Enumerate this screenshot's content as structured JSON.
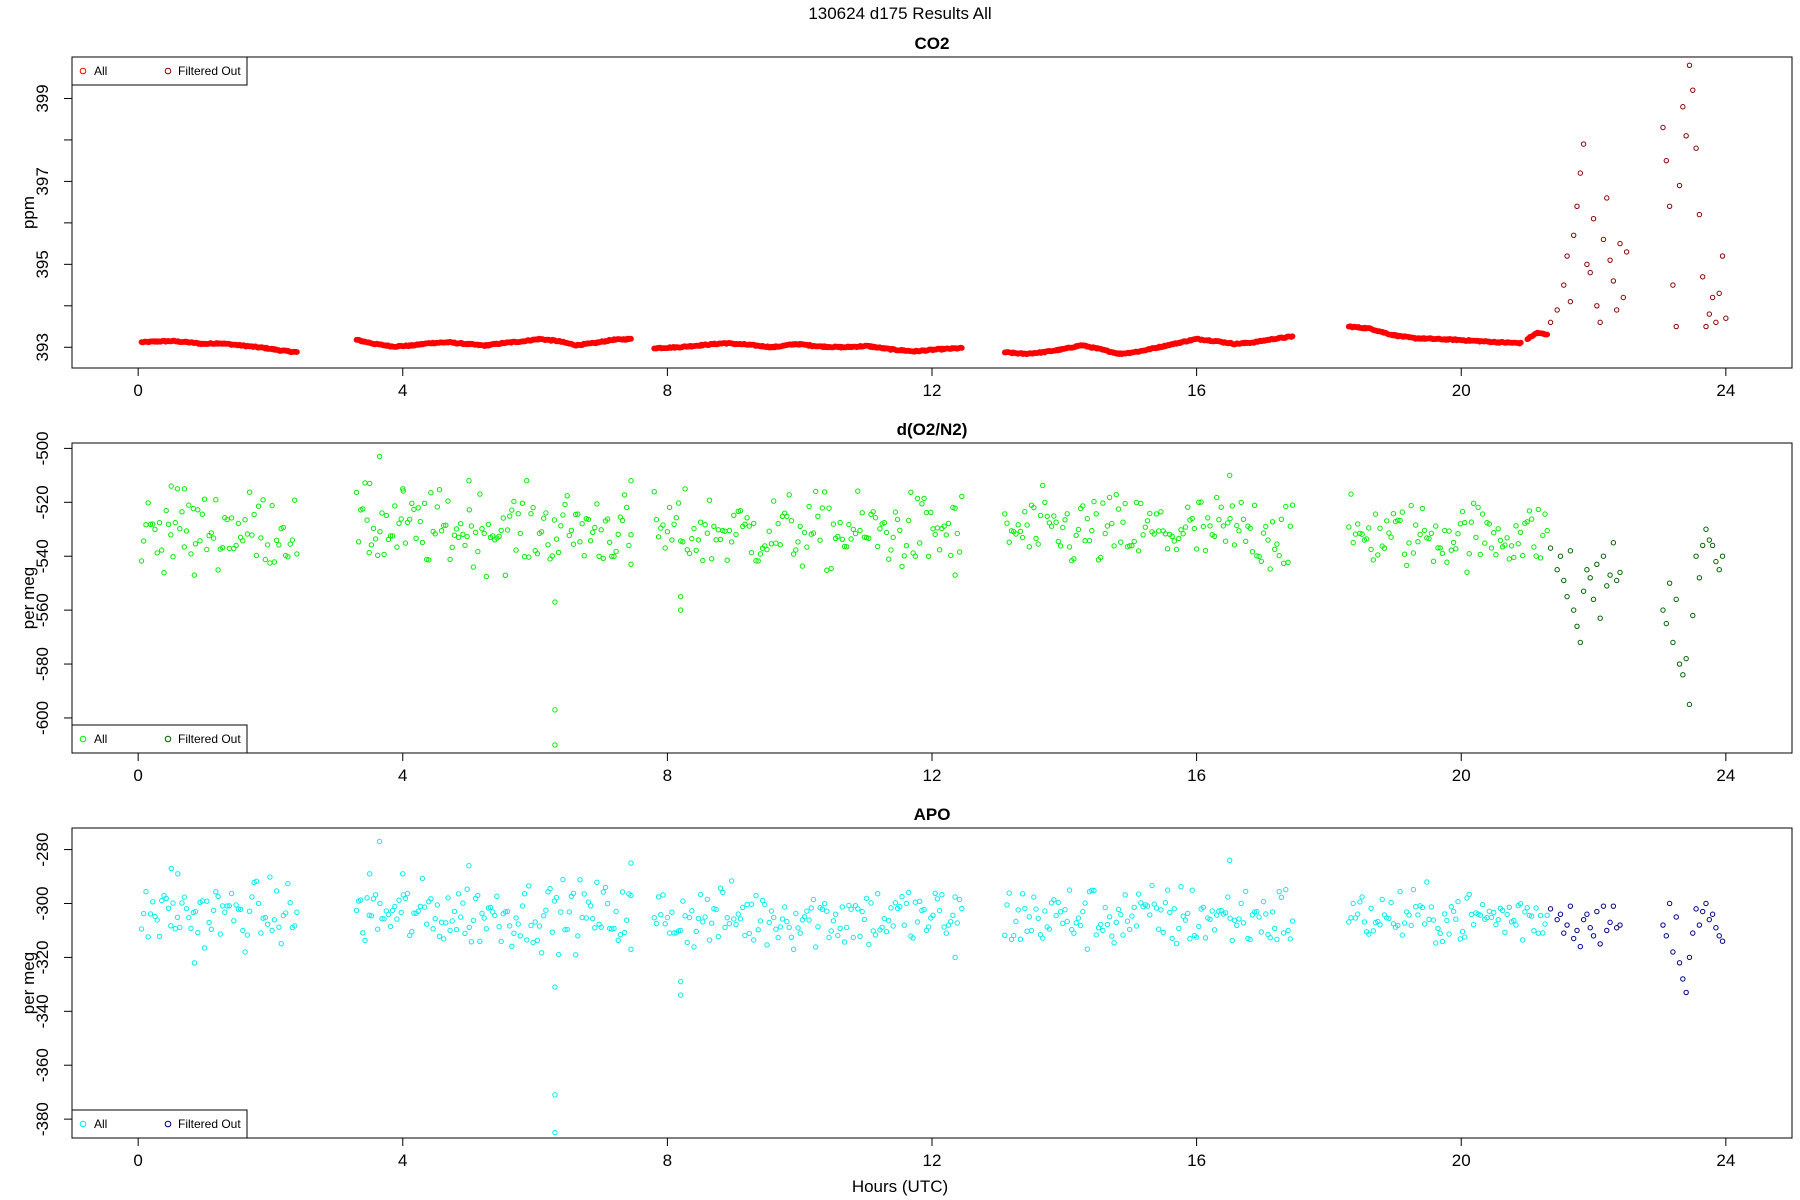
{
  "page": {
    "title": "130624   d175   Results All",
    "xlabel": "Hours (UTC)"
  },
  "chart_data": [
    {
      "type": "scatter",
      "title": "CO2",
      "ylabel": "ppm",
      "xlim": [
        -1.0,
        25.0
      ],
      "ylim": [
        392.5,
        400.0
      ],
      "xticks": [
        0,
        4,
        8,
        12,
        16,
        20,
        24
      ],
      "yticks": [
        393,
        395,
        397,
        399
      ],
      "minor_yticks": [
        394,
        396,
        398
      ],
      "legend": {
        "position": "top-left",
        "labels": [
          "All",
          "Filtered Out"
        ]
      },
      "series": [
        {
          "name": "All",
          "color": "#ff0000",
          "segments": [
            {
              "x_start": 0.05,
              "x_end": 2.4,
              "y_profile": [
                393.12,
                393.14,
                393.15,
                393.12,
                393.08,
                393.1,
                393.06,
                393.02,
                392.98,
                392.92,
                392.88
              ]
            },
            {
              "x_start": 3.3,
              "x_end": 7.45,
              "y_profile": [
                393.18,
                393.08,
                393.02,
                393.04,
                393.1,
                393.12,
                393.08,
                393.04,
                393.1,
                393.14,
                393.2,
                393.15,
                393.05,
                393.1,
                393.18,
                393.2
              ]
            },
            {
              "x_start": 7.8,
              "x_end": 12.45,
              "y_profile": [
                392.98,
                393.0,
                393.05,
                393.1,
                393.06,
                393.0,
                393.08,
                393.02,
                393.0,
                393.03,
                392.95,
                392.9,
                392.95,
                392.98
              ]
            },
            {
              "x_start": 13.1,
              "x_end": 17.45,
              "y_profile": [
                392.88,
                392.84,
                392.88,
                392.95,
                393.05,
                392.95,
                392.84,
                392.9,
                393.0,
                393.1,
                393.2,
                393.15,
                393.08,
                393.12,
                393.2,
                393.26
              ]
            },
            {
              "x_start": 18.3,
              "x_end": 20.9,
              "y_profile": [
                393.5,
                393.45,
                393.3,
                393.22,
                393.2,
                393.18,
                393.15,
                393.12,
                393.1
              ]
            },
            {
              "x_start": 21.0,
              "x_end": 21.3,
              "y_profile": [
                393.2,
                393.35,
                393.3
              ]
            }
          ]
        },
        {
          "name": "Filtered Out",
          "color": "#8b0000",
          "points": [
            [
              21.35,
              393.6
            ],
            [
              21.45,
              393.9
            ],
            [
              21.55,
              394.5
            ],
            [
              21.6,
              395.2
            ],
            [
              21.65,
              394.1
            ],
            [
              21.7,
              395.7
            ],
            [
              21.75,
              396.4
            ],
            [
              21.8,
              397.2
            ],
            [
              21.85,
              397.9
            ],
            [
              21.9,
              395.0
            ],
            [
              21.95,
              394.8
            ],
            [
              22.0,
              396.1
            ],
            [
              22.05,
              394.0
            ],
            [
              22.1,
              393.6
            ],
            [
              22.15,
              395.6
            ],
            [
              22.2,
              396.6
            ],
            [
              22.25,
              395.1
            ],
            [
              22.3,
              394.6
            ],
            [
              22.35,
              393.9
            ],
            [
              22.4,
              395.5
            ],
            [
              22.45,
              394.2
            ],
            [
              22.5,
              395.3
            ],
            [
              23.05,
              398.3
            ],
            [
              23.1,
              397.5
            ],
            [
              23.15,
              396.4
            ],
            [
              23.2,
              394.5
            ],
            [
              23.25,
              393.5
            ],
            [
              23.3,
              396.9
            ],
            [
              23.35,
              398.8
            ],
            [
              23.4,
              398.1
            ],
            [
              23.45,
              399.8
            ],
            [
              23.5,
              399.2
            ],
            [
              23.55,
              397.8
            ],
            [
              23.6,
              396.2
            ],
            [
              23.65,
              394.7
            ],
            [
              23.7,
              393.5
            ],
            [
              23.75,
              393.8
            ],
            [
              23.8,
              394.2
            ],
            [
              23.85,
              393.6
            ],
            [
              23.9,
              394.3
            ],
            [
              23.95,
              395.2
            ],
            [
              24.0,
              393.7
            ]
          ]
        }
      ]
    },
    {
      "type": "scatter",
      "title": "d(O2/N2)",
      "ylabel": "per meg",
      "xlim": [
        -1.0,
        25.0
      ],
      "ylim": [
        -613,
        -498
      ],
      "xticks": [
        0,
        4,
        8,
        12,
        16,
        20,
        24
      ],
      "yticks": [
        -600,
        -580,
        -560,
        -540,
        -520,
        -500
      ],
      "legend": {
        "position": "bottom-left",
        "labels": [
          "All",
          "Filtered Out"
        ]
      },
      "series": [
        {
          "name": "All",
          "color": "#00ee00",
          "segments": [
            {
              "x_start": 0.05,
              "x_end": 2.4,
              "center": -530,
              "spread": 7,
              "count": 70
            },
            {
              "x_start": 3.3,
              "x_end": 7.45,
              "center": -530,
              "spread": 7,
              "count": 130
            },
            {
              "x_start": 7.8,
              "x_end": 12.45,
              "center": -531,
              "spread": 7,
              "count": 140
            },
            {
              "x_start": 13.1,
              "x_end": 17.45,
              "center": -531,
              "spread": 7,
              "count": 130
            },
            {
              "x_start": 18.3,
              "x_end": 21.3,
              "center": -532,
              "spread": 6,
              "count": 90
            }
          ],
          "outliers": [
            [
              0.5,
              -514
            ],
            [
              0.7,
              -515
            ],
            [
              0.85,
              -547
            ],
            [
              3.5,
              -513
            ],
            [
              3.65,
              -503
            ],
            [
              4.0,
              -515
            ],
            [
              5.0,
              -512
            ],
            [
              6.3,
              -557
            ],
            [
              6.3,
              -597
            ],
            [
              6.3,
              -610
            ],
            [
              7.45,
              -512
            ],
            [
              7.45,
              -543
            ],
            [
              8.2,
              -555
            ],
            [
              8.2,
              -560
            ],
            [
              16.5,
              -510
            ],
            [
              12.35,
              -547
            ]
          ]
        },
        {
          "name": "Filtered Out",
          "color": "#006400",
          "points": [
            [
              21.35,
              -537
            ],
            [
              21.45,
              -545
            ],
            [
              21.5,
              -540
            ],
            [
              21.55,
              -549
            ],
            [
              21.6,
              -555
            ],
            [
              21.65,
              -538
            ],
            [
              21.7,
              -560
            ],
            [
              21.75,
              -566
            ],
            [
              21.8,
              -572
            ],
            [
              21.85,
              -553
            ],
            [
              21.9,
              -545
            ],
            [
              21.95,
              -548
            ],
            [
              22.0,
              -556
            ],
            [
              22.05,
              -543
            ],
            [
              22.1,
              -563
            ],
            [
              22.15,
              -540
            ],
            [
              22.2,
              -551
            ],
            [
              22.25,
              -547
            ],
            [
              22.3,
              -535
            ],
            [
              22.35,
              -549
            ],
            [
              22.4,
              -546
            ],
            [
              23.05,
              -560
            ],
            [
              23.1,
              -565
            ],
            [
              23.15,
              -550
            ],
            [
              23.2,
              -572
            ],
            [
              23.25,
              -556
            ],
            [
              23.3,
              -580
            ],
            [
              23.35,
              -584
            ],
            [
              23.4,
              -578
            ],
            [
              23.45,
              -595
            ],
            [
              23.5,
              -562
            ],
            [
              23.55,
              -540
            ],
            [
              23.6,
              -548
            ],
            [
              23.65,
              -536
            ],
            [
              23.7,
              -530
            ],
            [
              23.75,
              -534
            ],
            [
              23.8,
              -536
            ],
            [
              23.85,
              -542
            ],
            [
              23.9,
              -545
            ],
            [
              23.95,
              -540
            ]
          ]
        }
      ]
    },
    {
      "type": "scatter",
      "title": "APO",
      "ylabel": "per meg",
      "xlim": [
        -1.0,
        25.0
      ],
      "ylim": [
        -387,
        -272
      ],
      "xticks": [
        0,
        4,
        8,
        12,
        16,
        20,
        24
      ],
      "yticks": [
        -380,
        -360,
        -340,
        -320,
        -300,
        -280
      ],
      "legend": {
        "position": "bottom-left",
        "labels": [
          "All",
          "Filtered Out"
        ]
      },
      "series": [
        {
          "name": "All",
          "color": "#00eeee",
          "segments": [
            {
              "x_start": 0.05,
              "x_end": 2.4,
              "center": -304,
              "spread": 6,
              "count": 70
            },
            {
              "x_start": 3.3,
              "x_end": 7.45,
              "center": -304,
              "spread": 6,
              "count": 130
            },
            {
              "x_start": 7.8,
              "x_end": 12.45,
              "center": -305,
              "spread": 6,
              "count": 140
            },
            {
              "x_start": 13.1,
              "x_end": 17.45,
              "center": -305,
              "spread": 6,
              "count": 130
            },
            {
              "x_start": 18.3,
              "x_end": 21.3,
              "center": -305,
              "spread": 5,
              "count": 90
            }
          ],
          "outliers": [
            [
              0.5,
              -287
            ],
            [
              0.6,
              -289
            ],
            [
              0.85,
              -322
            ],
            [
              3.5,
              -289
            ],
            [
              3.65,
              -277
            ],
            [
              4.0,
              -289
            ],
            [
              5.0,
              -286
            ],
            [
              6.3,
              -331
            ],
            [
              6.3,
              -371
            ],
            [
              6.3,
              -385
            ],
            [
              7.45,
              -285
            ],
            [
              7.45,
              -317
            ],
            [
              8.2,
              -329
            ],
            [
              8.2,
              -334
            ],
            [
              16.5,
              -284
            ],
            [
              12.35,
              -320
            ]
          ]
        },
        {
          "name": "Filtered Out",
          "color": "#00008b",
          "points": [
            [
              21.35,
              -302
            ],
            [
              21.45,
              -306
            ],
            [
              21.5,
              -304
            ],
            [
              21.55,
              -311
            ],
            [
              21.6,
              -308
            ],
            [
              21.65,
              -301
            ],
            [
              21.7,
              -313
            ],
            [
              21.75,
              -310
            ],
            [
              21.8,
              -316
            ],
            [
              21.85,
              -306
            ],
            [
              21.9,
              -304
            ],
            [
              21.95,
              -309
            ],
            [
              22.0,
              -312
            ],
            [
              22.05,
              -303
            ],
            [
              22.1,
              -315
            ],
            [
              22.15,
              -301
            ],
            [
              22.2,
              -310
            ],
            [
              22.25,
              -307
            ],
            [
              22.3,
              -301
            ],
            [
              22.35,
              -309
            ],
            [
              22.4,
              -308
            ],
            [
              23.05,
              -308
            ],
            [
              23.1,
              -312
            ],
            [
              23.15,
              -300
            ],
            [
              23.2,
              -318
            ],
            [
              23.25,
              -305
            ],
            [
              23.3,
              -322
            ],
            [
              23.35,
              -328
            ],
            [
              23.4,
              -333
            ],
            [
              23.45,
              -320
            ],
            [
              23.5,
              -311
            ],
            [
              23.55,
              -302
            ],
            [
              23.6,
              -308
            ],
            [
              23.65,
              -303
            ],
            [
              23.7,
              -300
            ],
            [
              23.75,
              -306
            ],
            [
              23.8,
              -304
            ],
            [
              23.85,
              -309
            ],
            [
              23.9,
              -312
            ],
            [
              23.95,
              -314
            ]
          ]
        }
      ]
    }
  ]
}
